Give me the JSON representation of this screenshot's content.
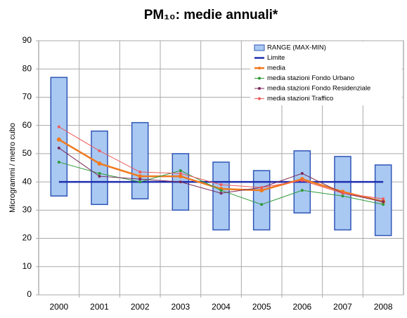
{
  "chart_data": {
    "type": "range-line",
    "title": "PM₁₀: medie annuali*",
    "y_label": "Microgrammi / metro cubo",
    "categories": [
      "2000",
      "2001",
      "2002",
      "2003",
      "2004",
      "2005",
      "2006",
      "2007",
      "2008"
    ],
    "range": {
      "name": "RANGE (MAX-MIN)",
      "color": "#a9c9f2",
      "stroke": "#2f56b8",
      "low": [
        35,
        32,
        34,
        30,
        23,
        23,
        29,
        23,
        21
      ],
      "high": [
        77,
        58,
        61,
        50,
        47,
        44,
        51,
        49,
        46
      ]
    },
    "series": [
      {
        "name": "Limite",
        "color": "#1f2fb0",
        "values": [
          40,
          40,
          40,
          40,
          40,
          40,
          40,
          40,
          40
        ],
        "width": 2.5,
        "marker": false
      },
      {
        "name": "media",
        "color": "#f07a1e",
        "values": [
          55,
          46.5,
          42,
          42,
          37.5,
          37,
          41,
          36.5,
          33
        ],
        "width": 2.5,
        "marker": true
      },
      {
        "name": "media stazioni Fondo Urbano",
        "color": "#2e9a3a",
        "values": [
          47,
          43,
          40,
          44,
          37,
          32,
          37,
          35,
          32
        ],
        "width": 1,
        "marker": true
      },
      {
        "name": "media stazioni Fondo Residenziale",
        "color": "#7a2a5a",
        "values": [
          52,
          42,
          41,
          40,
          36,
          38,
          43,
          36,
          33
        ],
        "width": 1,
        "marker": true
      },
      {
        "name": "media stazioni Traffico",
        "color": "#f05a5a",
        "values": [
          59.5,
          51,
          43.5,
          43,
          39,
          38,
          40.5,
          36,
          34
        ],
        "width": 1,
        "marker": true
      }
    ],
    "ylim": [
      0,
      90
    ],
    "yticks": [
      0,
      10,
      20,
      30,
      40,
      50,
      60,
      70,
      80,
      90
    ],
    "grid": true
  }
}
